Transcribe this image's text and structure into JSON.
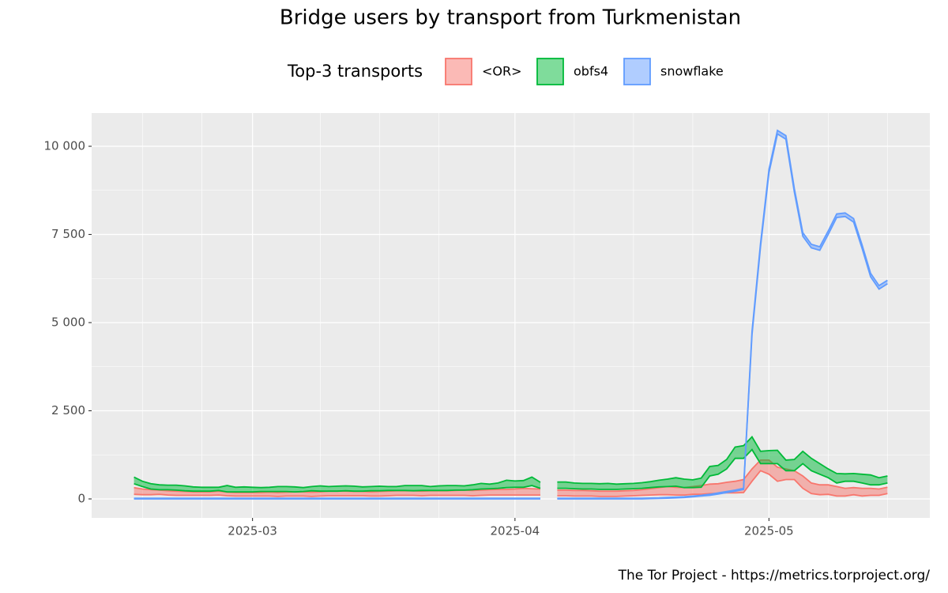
{
  "chart_data": {
    "type": "ribbon",
    "title": "Bridge users by transport from Turkmenistan",
    "legend_title": "Top-3 transports",
    "caption": "The Tor Project - https://metrics.torproject.org/",
    "legend": "top",
    "grid": true,
    "x": [
      "2025-02-15",
      "2025-02-16",
      "2025-02-17",
      "2025-02-18",
      "2025-02-19",
      "2025-02-20",
      "2025-02-21",
      "2025-02-22",
      "2025-02-23",
      "2025-02-24",
      "2025-02-25",
      "2025-02-26",
      "2025-02-27",
      "2025-02-28",
      "2025-03-01",
      "2025-03-02",
      "2025-03-03",
      "2025-03-04",
      "2025-03-05",
      "2025-03-06",
      "2025-03-07",
      "2025-03-08",
      "2025-03-09",
      "2025-03-10",
      "2025-03-11",
      "2025-03-12",
      "2025-03-13",
      "2025-03-14",
      "2025-03-15",
      "2025-03-16",
      "2025-03-17",
      "2025-03-18",
      "2025-03-19",
      "2025-03-20",
      "2025-03-21",
      "2025-03-22",
      "2025-03-23",
      "2025-03-24",
      "2025-03-25",
      "2025-03-26",
      "2025-03-27",
      "2025-03-28",
      "2025-03-29",
      "2025-03-30",
      "2025-03-31",
      "2025-04-01",
      "2025-04-02",
      "2025-04-03",
      "2025-04-04",
      "2025-04-05",
      "2025-04-06",
      "2025-04-07",
      "2025-04-08",
      "2025-04-09",
      "2025-04-10",
      "2025-04-11",
      "2025-04-12",
      "2025-04-13",
      "2025-04-14",
      "2025-04-15",
      "2025-04-16",
      "2025-04-17",
      "2025-04-18",
      "2025-04-19",
      "2025-04-20",
      "2025-04-21",
      "2025-04-22",
      "2025-04-23",
      "2025-04-24",
      "2025-04-25",
      "2025-04-26",
      "2025-04-27",
      "2025-04-28",
      "2025-04-29",
      "2025-04-30",
      "2025-05-01",
      "2025-05-02",
      "2025-05-03",
      "2025-05-04",
      "2025-05-05",
      "2025-05-06",
      "2025-05-07",
      "2025-05-08",
      "2025-05-09",
      "2025-05-10",
      "2025-05-11",
      "2025-05-12",
      "2025-05-13",
      "2025-05-14",
      "2025-05-15"
    ],
    "series": [
      {
        "name": "<OR>",
        "color": "#f8766d",
        "low": [
          130,
          120,
          120,
          130,
          110,
          100,
          100,
          100,
          100,
          100,
          110,
          90,
          80,
          80,
          80,
          80,
          80,
          70,
          80,
          80,
          80,
          70,
          80,
          90,
          90,
          90,
          90,
          90,
          80,
          80,
          90,
          100,
          100,
          100,
          90,
          100,
          100,
          100,
          100,
          100,
          90,
          100,
          110,
          110,
          110,
          110,
          110,
          110,
          110,
          null,
          90,
          90,
          80,
          80,
          80,
          70,
          70,
          70,
          80,
          90,
          100,
          110,
          120,
          120,
          110,
          110,
          130,
          130,
          150,
          160,
          170,
          170,
          180,
          500,
          800,
          700,
          500,
          550,
          550,
          300,
          150,
          120,
          130,
          80,
          80,
          120,
          80,
          100,
          100,
          150
        ],
        "high": [
          320,
          280,
          260,
          250,
          230,
          220,
          210,
          200,
          200,
          200,
          220,
          190,
          180,
          180,
          180,
          180,
          190,
          180,
          190,
          200,
          200,
          190,
          200,
          220,
          220,
          220,
          210,
          210,
          200,
          210,
          220,
          230,
          230,
          230,
          220,
          230,
          230,
          230,
          240,
          250,
          240,
          250,
          260,
          270,
          270,
          280,
          300,
          290,
          280,
          null,
          250,
          250,
          240,
          240,
          230,
          220,
          220,
          220,
          230,
          240,
          260,
          290,
          320,
          350,
          330,
          320,
          350,
          380,
          420,
          430,
          470,
          500,
          550,
          850,
          1100,
          1100,
          900,
          850,
          800,
          650,
          450,
          400,
          400,
          350,
          300,
          320,
          300,
          300,
          280,
          330
        ]
      },
      {
        "name": "obfs4",
        "color": "#00ba38",
        "low": [
          430,
          350,
          280,
          260,
          260,
          250,
          230,
          220,
          220,
          220,
          240,
          200,
          200,
          200,
          200,
          210,
          210,
          210,
          210,
          200,
          210,
          230,
          220,
          220,
          220,
          230,
          220,
          220,
          230,
          230,
          240,
          240,
          240,
          230,
          240,
          240,
          240,
          240,
          250,
          250,
          260,
          280,
          290,
          300,
          320,
          330,
          330,
          380,
          300,
          null,
          300,
          300,
          290,
          280,
          280,
          270,
          270,
          270,
          280,
          290,
          300,
          320,
          340,
          350,
          360,
          320,
          320,
          330,
          650,
          700,
          850,
          1150,
          1150,
          1400,
          1000,
          1000,
          1000,
          800,
          800,
          1000,
          800,
          700,
          600,
          450,
          500,
          500,
          450,
          400,
          400,
          450
        ],
        "high": [
          620,
          500,
          430,
          400,
          390,
          390,
          370,
          340,
          330,
          330,
          330,
          380,
          330,
          340,
          330,
          320,
          330,
          350,
          350,
          340,
          320,
          350,
          370,
          350,
          360,
          370,
          360,
          340,
          350,
          360,
          350,
          350,
          380,
          380,
          380,
          350,
          370,
          380,
          380,
          370,
          400,
          440,
          420,
          450,
          530,
          510,
          520,
          620,
          470,
          null,
          480,
          480,
          450,
          440,
          440,
          430,
          440,
          420,
          430,
          440,
          460,
          490,
          530,
          560,
          600,
          560,
          540,
          590,
          920,
          950,
          1120,
          1470,
          1510,
          1760,
          1350,
          1370,
          1380,
          1100,
          1120,
          1350,
          1150,
          1000,
          850,
          720,
          710,
          720,
          700,
          680,
          600,
          650
        ]
      },
      {
        "name": "snowflake",
        "color": "#619cff",
        "low": [
          0,
          0,
          0,
          0,
          0,
          0,
          0,
          0,
          0,
          0,
          0,
          0,
          0,
          0,
          0,
          0,
          0,
          0,
          0,
          0,
          0,
          0,
          0,
          0,
          0,
          0,
          0,
          0,
          0,
          0,
          0,
          0,
          0,
          0,
          0,
          0,
          0,
          0,
          0,
          0,
          0,
          0,
          0,
          0,
          0,
          0,
          0,
          0,
          0,
          null,
          0,
          0,
          0,
          0,
          0,
          0,
          0,
          0,
          0,
          0,
          0,
          10,
          15,
          20,
          30,
          40,
          60,
          80,
          100,
          140,
          180,
          220,
          270,
          4650,
          7150,
          9250,
          10350,
          10200,
          8700,
          7450,
          7120,
          7050,
          7500,
          7980,
          8010,
          7850,
          7100,
          6300,
          5950,
          6100
        ],
        "high": [
          20,
          20,
          20,
          20,
          20,
          20,
          20,
          20,
          20,
          20,
          20,
          20,
          20,
          20,
          20,
          20,
          20,
          20,
          20,
          20,
          20,
          20,
          20,
          20,
          20,
          20,
          20,
          20,
          20,
          20,
          20,
          20,
          20,
          20,
          20,
          20,
          20,
          20,
          20,
          20,
          20,
          20,
          20,
          20,
          20,
          20,
          20,
          20,
          20,
          null,
          20,
          20,
          20,
          20,
          20,
          20,
          20,
          20,
          20,
          20,
          20,
          25,
          30,
          40,
          50,
          60,
          80,
          100,
          130,
          170,
          210,
          250,
          300,
          4750,
          7250,
          9350,
          10450,
          10300,
          8800,
          7550,
          7220,
          7150,
          7600,
          8080,
          8110,
          7950,
          7200,
          6400,
          6050,
          6200
        ]
      }
    ],
    "xlim": [
      "2025-02-10",
      "2025-05-20"
    ],
    "xticks": [
      {
        "value": "2025-03-01",
        "label": "2025-03"
      },
      {
        "value": "2025-04-01",
        "label": "2025-04"
      },
      {
        "value": "2025-05-01",
        "label": "2025-05"
      }
    ],
    "xminor": [
      "2025-02-16",
      "2025-02-23",
      "2025-03-09",
      "2025-03-16",
      "2025-03-23",
      "2025-04-08",
      "2025-04-15",
      "2025-04-22",
      "2025-05-08",
      "2025-05-15"
    ],
    "ylim": [
      -538,
      10942
    ],
    "yticks": [
      0,
      {
        "value": 2500,
        "label": "2 500"
      },
      {
        "value": 5000,
        "label": "5 000"
      },
      {
        "value": 7500,
        "label": "7 500"
      },
      {
        "value": 10000,
        "label": "10 000"
      }
    ],
    "yminor": [
      1250,
      3750,
      6250,
      8750
    ]
  }
}
